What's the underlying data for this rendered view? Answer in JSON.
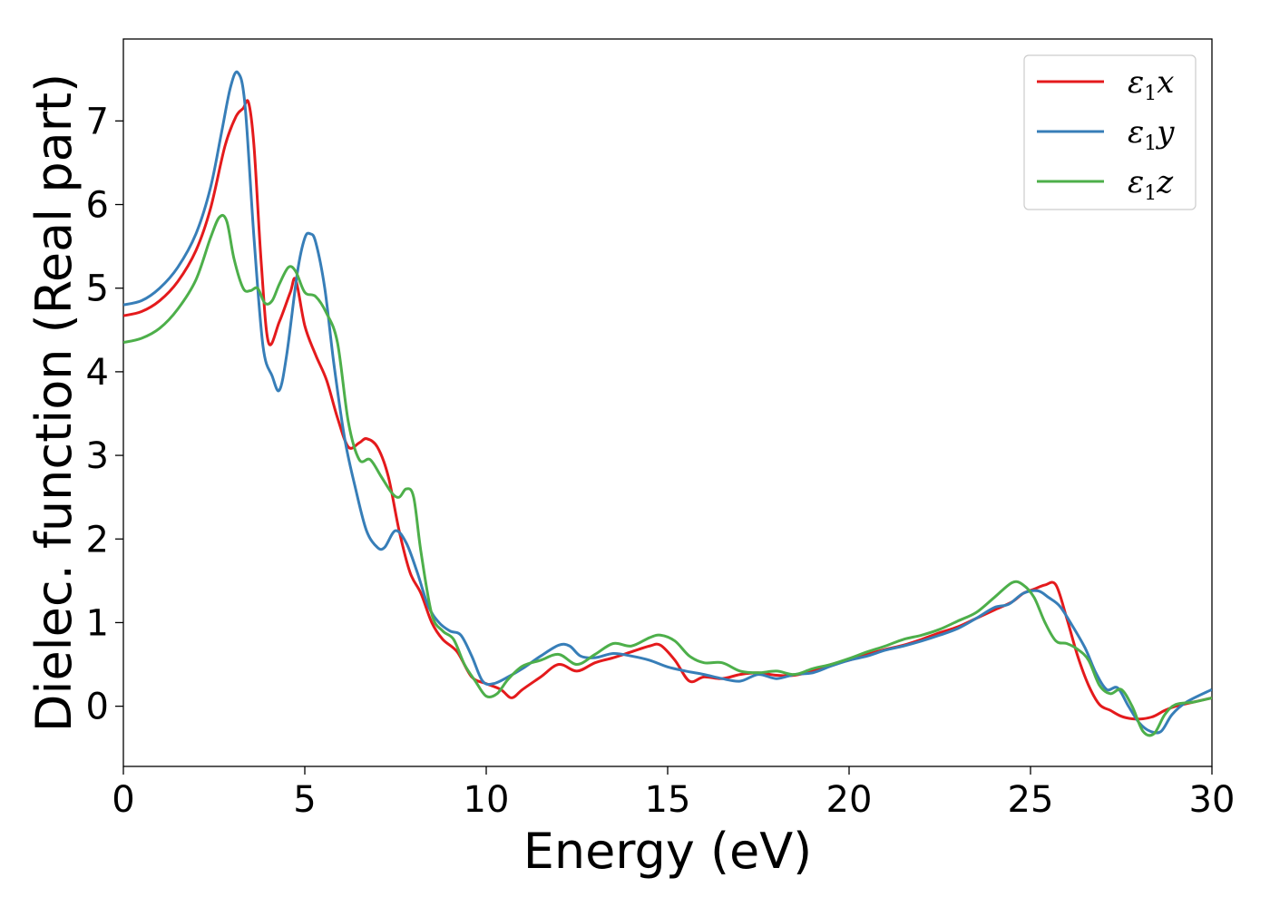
{
  "chart_data": {
    "type": "line",
    "xlabel": "Energy (eV)",
    "ylabel": "Dielec. function (Real part)",
    "xlim": [
      0,
      30
    ],
    "ylim": [
      -0.72,
      7.98
    ],
    "xticks": [
      0,
      5,
      10,
      15,
      20,
      25,
      30
    ],
    "yticks": [
      0,
      1,
      2,
      3,
      4,
      5,
      6,
      7
    ],
    "grid": false,
    "legend_position": "top-right",
    "series": [
      {
        "name": "ε₁x",
        "legend": {
          "base": "ε",
          "sub": "1",
          "suffix": "x"
        },
        "color": "#e41a1c",
        "x": [
          0,
          0.5,
          1.0,
          1.5,
          2.0,
          2.4,
          2.8,
          3.1,
          3.3,
          3.45,
          3.6,
          3.8,
          4.0,
          4.3,
          4.6,
          4.75,
          5.0,
          5.3,
          5.6,
          5.9,
          6.2,
          6.5,
          6.7,
          7.0,
          7.3,
          7.6,
          7.9,
          8.2,
          8.5,
          8.8,
          9.2,
          9.6,
          10.0,
          10.4,
          10.7,
          11.0,
          11.5,
          12.0,
          12.5,
          13.0,
          13.5,
          14.0,
          14.5,
          14.8,
          15.2,
          15.6,
          16.0,
          16.5,
          17.0,
          17.5,
          18.0,
          18.5,
          19.0,
          19.5,
          20.0,
          20.5,
          21.0,
          21.5,
          22.0,
          22.5,
          23.0,
          23.5,
          24.0,
          24.5,
          24.8,
          25.1,
          25.4,
          25.7,
          26.0,
          26.3,
          26.6,
          26.9,
          27.2,
          27.5,
          27.8,
          28.1,
          28.4,
          28.7,
          29.0,
          29.5,
          30.0
        ],
        "y": [
          4.67,
          4.72,
          4.85,
          5.08,
          5.45,
          5.95,
          6.7,
          7.05,
          7.15,
          7.22,
          6.7,
          5.3,
          4.35,
          4.6,
          4.95,
          5.1,
          4.55,
          4.2,
          3.9,
          3.45,
          3.1,
          3.15,
          3.2,
          3.1,
          2.75,
          2.1,
          1.6,
          1.35,
          1.0,
          0.8,
          0.65,
          0.35,
          0.27,
          0.2,
          0.1,
          0.2,
          0.35,
          0.5,
          0.42,
          0.52,
          0.58,
          0.65,
          0.72,
          0.73,
          0.55,
          0.3,
          0.35,
          0.33,
          0.38,
          0.4,
          0.37,
          0.37,
          0.42,
          0.5,
          0.55,
          0.62,
          0.68,
          0.73,
          0.8,
          0.88,
          0.95,
          1.05,
          1.15,
          1.25,
          1.35,
          1.4,
          1.45,
          1.45,
          1.05,
          0.6,
          0.25,
          0.02,
          -0.05,
          -0.12,
          -0.15,
          -0.15,
          -0.12,
          -0.05,
          0.0,
          0.05,
          0.1
        ]
      },
      {
        "name": "ε₁y",
        "legend": {
          "base": "ε",
          "sub": "1",
          "suffix": "y"
        },
        "color": "#377eb8",
        "x": [
          0,
          0.5,
          1.0,
          1.5,
          2.0,
          2.4,
          2.7,
          2.95,
          3.15,
          3.35,
          3.6,
          3.85,
          4.1,
          4.3,
          4.5,
          4.8,
          5.0,
          5.15,
          5.3,
          5.55,
          5.8,
          6.1,
          6.4,
          6.7,
          7.0,
          7.2,
          7.5,
          7.8,
          8.1,
          8.4,
          8.7,
          9.0,
          9.3,
          9.6,
          9.9,
          10.2,
          10.6,
          11.0,
          11.5,
          12.0,
          12.3,
          12.6,
          13.0,
          13.5,
          14.0,
          14.5,
          15.0,
          15.5,
          16.0,
          16.5,
          17.0,
          17.5,
          18.0,
          18.5,
          19.0,
          19.5,
          20.0,
          20.5,
          21.0,
          21.5,
          22.0,
          22.5,
          23.0,
          23.5,
          24.0,
          24.4,
          24.8,
          25.2,
          25.5,
          25.8,
          26.1,
          26.5,
          26.8,
          27.1,
          27.4,
          27.7,
          28.0,
          28.3,
          28.6,
          28.9,
          29.3,
          30.0
        ],
        "y": [
          4.8,
          4.85,
          5.0,
          5.25,
          5.65,
          6.2,
          6.85,
          7.4,
          7.58,
          7.2,
          5.6,
          4.3,
          3.95,
          3.78,
          4.2,
          5.2,
          5.6,
          5.65,
          5.55,
          5.0,
          4.1,
          3.2,
          2.6,
          2.1,
          1.9,
          1.9,
          2.1,
          1.95,
          1.6,
          1.2,
          1.0,
          0.9,
          0.85,
          0.6,
          0.3,
          0.27,
          0.35,
          0.45,
          0.6,
          0.73,
          0.72,
          0.6,
          0.58,
          0.63,
          0.6,
          0.55,
          0.47,
          0.42,
          0.38,
          0.33,
          0.3,
          0.38,
          0.33,
          0.38,
          0.4,
          0.48,
          0.55,
          0.6,
          0.67,
          0.72,
          0.78,
          0.85,
          0.93,
          1.05,
          1.18,
          1.22,
          1.35,
          1.38,
          1.3,
          1.2,
          1.0,
          0.7,
          0.4,
          0.2,
          0.22,
          0.0,
          -0.2,
          -0.3,
          -0.3,
          -0.1,
          0.05,
          0.2
        ]
      },
      {
        "name": "ε₁z",
        "legend": {
          "base": "ε",
          "sub": "1",
          "suffix": "z"
        },
        "color": "#4daf4a",
        "x": [
          0,
          0.5,
          1.0,
          1.5,
          2.0,
          2.4,
          2.65,
          2.85,
          3.05,
          3.3,
          3.5,
          3.7,
          3.9,
          4.1,
          4.3,
          4.55,
          4.75,
          5.0,
          5.3,
          5.6,
          5.9,
          6.2,
          6.5,
          6.8,
          7.1,
          7.4,
          7.6,
          7.8,
          8.0,
          8.2,
          8.5,
          8.8,
          9.1,
          9.4,
          9.7,
          10.0,
          10.3,
          10.6,
          11.0,
          11.5,
          12.0,
          12.5,
          13.0,
          13.5,
          14.0,
          14.5,
          14.8,
          15.2,
          15.6,
          16.0,
          16.5,
          17.0,
          17.5,
          18.0,
          18.5,
          19.0,
          19.5,
          20.0,
          20.5,
          21.0,
          21.5,
          22.0,
          22.5,
          23.0,
          23.5,
          24.0,
          24.5,
          24.8,
          25.1,
          25.4,
          25.7,
          26.0,
          26.3,
          26.6,
          26.9,
          27.2,
          27.5,
          27.8,
          28.1,
          28.4,
          28.7,
          29.0,
          29.5,
          30.0
        ],
        "y": [
          4.35,
          4.4,
          4.52,
          4.75,
          5.1,
          5.6,
          5.85,
          5.8,
          5.35,
          5.0,
          4.97,
          5.0,
          4.82,
          4.85,
          5.05,
          5.25,
          5.2,
          4.95,
          4.9,
          4.7,
          4.35,
          3.4,
          2.95,
          2.95,
          2.75,
          2.55,
          2.5,
          2.6,
          2.5,
          1.85,
          1.1,
          0.9,
          0.8,
          0.5,
          0.3,
          0.12,
          0.15,
          0.32,
          0.48,
          0.55,
          0.62,
          0.5,
          0.62,
          0.75,
          0.72,
          0.82,
          0.85,
          0.78,
          0.6,
          0.52,
          0.52,
          0.42,
          0.4,
          0.42,
          0.38,
          0.45,
          0.5,
          0.57,
          0.65,
          0.72,
          0.8,
          0.85,
          0.92,
          1.02,
          1.12,
          1.3,
          1.48,
          1.45,
          1.3,
          1.0,
          0.78,
          0.75,
          0.68,
          0.55,
          0.25,
          0.15,
          0.2,
          0.0,
          -0.3,
          -0.33,
          -0.1,
          0.02,
          0.05,
          0.1
        ]
      }
    ]
  }
}
